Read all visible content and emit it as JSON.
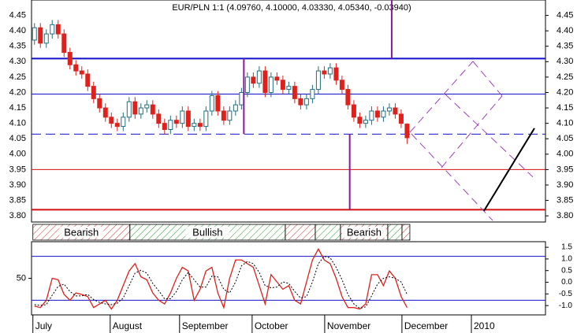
{
  "chart_data": [
    {
      "type": "candlestick",
      "title": "EUR/PLN 1:1 (4.09760, 4.10000, 4.03330, 4.05340, -0.03940)",
      "xlim": [
        -0.5,
        86.4
      ],
      "ylim": [
        3.78,
        4.5
      ],
      "yticks": [
        4.45,
        {
          "value": 4.4,
          "label": "4.40"
        },
        4.35,
        {
          "value": 4.3,
          "label": "4.30"
        },
        4.25,
        {
          "value": 4.2,
          "label": "4.20"
        },
        4.15,
        {
          "value": 4.1,
          "label": "4.10"
        },
        4.05,
        {
          "value": 4.0,
          "label": "4.00"
        },
        3.95,
        {
          "value": 3.9,
          "label": "3.90"
        },
        3.85,
        {
          "value": 3.8,
          "label": "3.80"
        }
      ],
      "up_color": "#1f6f80",
      "down_color": "#e0201b",
      "open": [
        4.37,
        4.41,
        4.36,
        4.39,
        4.42,
        4.39,
        4.33,
        4.29,
        4.27,
        4.26,
        4.22,
        4.18,
        4.15,
        4.12,
        4.1,
        4.09,
        4.12,
        4.17,
        4.13,
        4.15,
        4.16,
        4.13,
        4.1,
        4.08,
        4.11,
        4.1,
        4.14,
        4.09,
        4.1,
        4.09,
        4.14,
        4.19,
        4.14,
        4.11,
        4.14,
        4.16,
        4.2,
        4.25,
        4.23,
        4.27,
        4.2,
        4.25,
        4.24,
        4.21,
        4.22,
        4.18,
        4.16,
        4.18,
        4.21,
        4.27,
        4.26,
        4.28,
        4.24,
        4.21,
        4.16,
        4.12,
        4.1,
        4.11,
        4.14,
        4.12,
        4.14,
        4.15,
        4.13,
        4.0976
      ],
      "high": [
        4.425,
        4.425,
        4.405,
        4.435,
        4.435,
        4.405,
        4.345,
        4.305,
        4.285,
        4.275,
        4.235,
        4.195,
        4.165,
        4.135,
        4.115,
        4.135,
        4.185,
        4.185,
        4.165,
        4.175,
        4.175,
        4.145,
        4.115,
        4.125,
        4.125,
        4.155,
        4.155,
        4.115,
        4.115,
        4.155,
        4.205,
        4.205,
        4.155,
        4.155,
        4.175,
        4.215,
        4.265,
        4.265,
        4.285,
        4.285,
        4.265,
        4.265,
        4.255,
        4.235,
        4.235,
        4.195,
        4.195,
        4.225,
        4.285,
        4.285,
        4.295,
        4.295,
        4.255,
        4.225,
        4.175,
        4.135,
        4.125,
        4.155,
        4.155,
        4.155,
        4.165,
        4.165,
        4.145,
        4.1
      ],
      "low": [
        4.355,
        4.345,
        4.345,
        4.375,
        4.375,
        4.315,
        4.275,
        4.255,
        4.245,
        4.205,
        4.165,
        4.135,
        4.105,
        4.085,
        4.075,
        4.075,
        4.105,
        4.115,
        4.115,
        4.135,
        4.115,
        4.085,
        4.065,
        4.065,
        4.085,
        4.085,
        4.075,
        4.075,
        4.075,
        4.075,
        4.125,
        4.125,
        4.095,
        4.095,
        4.125,
        4.145,
        4.185,
        4.215,
        4.215,
        4.185,
        4.185,
        4.225,
        4.195,
        4.195,
        4.165,
        4.145,
        4.145,
        4.165,
        4.195,
        4.245,
        4.245,
        4.225,
        4.195,
        4.145,
        4.105,
        4.085,
        4.085,
        4.095,
        4.105,
        4.105,
        4.125,
        4.115,
        4.085,
        4.0333
      ],
      "close": [
        4.41,
        4.36,
        4.39,
        4.42,
        4.39,
        4.33,
        4.29,
        4.27,
        4.26,
        4.22,
        4.18,
        4.15,
        4.12,
        4.1,
        4.09,
        4.12,
        4.17,
        4.13,
        4.15,
        4.16,
        4.13,
        4.1,
        4.08,
        4.11,
        4.1,
        4.14,
        4.09,
        4.1,
        4.09,
        4.14,
        4.19,
        4.14,
        4.11,
        4.14,
        4.16,
        4.2,
        4.25,
        4.23,
        4.27,
        4.2,
        4.25,
        4.24,
        4.21,
        4.22,
        4.18,
        4.16,
        4.18,
        4.21,
        4.27,
        4.26,
        4.28,
        4.24,
        4.21,
        4.16,
        4.12,
        4.1,
        4.11,
        4.14,
        4.12,
        4.14,
        4.15,
        4.13,
        4.1,
        4.0534
      ],
      "levels": [
        {
          "value": 4.31,
          "color": "#1010c8",
          "width": 2
        },
        {
          "value": 4.195,
          "color": "#1010c8",
          "width": 1
        },
        {
          "value": 4.065,
          "color": "#1010c8",
          "width": 1,
          "dash": true
        },
        {
          "value": 3.95,
          "color": "#d01010",
          "width": 1
        },
        {
          "value": 3.82,
          "color": "#d01010",
          "width": 2
        }
      ],
      "drawings": [
        {
          "color": "#8a1a9a",
          "width": 2,
          "x": [
            60.4,
            60.4
          ],
          "y": [
            4.31,
            4.5
          ]
        },
        {
          "color": "#8a1a9a",
          "width": 2,
          "x": [
            35.4,
            35.4
          ],
          "y": [
            4.31,
            4.065
          ]
        },
        {
          "color": "#8a1a9a",
          "width": 2,
          "x": [
            53.3,
            53.3
          ],
          "y": [
            4.065,
            3.82
          ]
        },
        {
          "color": "#a040c0",
          "width": 1,
          "dash": true,
          "x": [
            63.47,
            74.13
          ],
          "y": [
            4.071,
            4.301
          ]
        },
        {
          "color": "#a040c0",
          "width": 1,
          "dash": true,
          "x": [
            68.8,
            79.07
          ],
          "y": [
            3.956,
            4.189
          ]
        },
        {
          "color": "#a040c0",
          "width": 1,
          "dash": true,
          "x": [
            74.13,
            79.07
          ],
          "y": [
            4.301,
            4.189
          ]
        },
        {
          "color": "#a040c0",
          "width": 1,
          "dash": true,
          "x": [
            69.47,
            84.27
          ],
          "y": [
            4.194,
            3.926
          ]
        },
        {
          "color": "#a040c0",
          "width": 1,
          "dash": true,
          "x": [
            63.73,
            77.47
          ],
          "y": [
            4.066,
            3.785
          ]
        },
        {
          "color": "#000000",
          "width": 2,
          "x": [
            76.0,
            84.53
          ],
          "y": [
            3.816,
            4.084
          ]
        }
      ]
    },
    {
      "type": "bands",
      "xlim": [
        -0.5,
        86.4
      ],
      "segments": [
        {
          "start": -0.27,
          "end": 16.13,
          "color": "#d03030",
          "label": "Bearish"
        },
        {
          "start": 16.13,
          "end": 42.4,
          "color": "#30a030",
          "label": "Bullish"
        },
        {
          "start": 42.4,
          "end": 47.47,
          "color": "#d03030"
        },
        {
          "start": 47.47,
          "end": 51.73,
          "color": "#30a030"
        },
        {
          "start": 51.73,
          "end": 59.73,
          "color": "#d03030",
          "label": "Bearish"
        },
        {
          "start": 59.73,
          "end": 62.13,
          "color": "#30a030"
        },
        {
          "start": 62.13,
          "end": 63.47,
          "color": "#d03030"
        }
      ]
    },
    {
      "type": "line",
      "xlim": [
        -0.5,
        86.4
      ],
      "ylim": [
        0,
        100
      ],
      "yticks": [
        50
      ],
      "y2lim": [
        -1.4,
        1.74
      ],
      "y2ticks": [
        1.5,
        {
          "value": 1,
          "label": "1.0"
        },
        0.5,
        {
          "value": 0,
          "label": "0.0"
        },
        -0.5,
        {
          "value": -1,
          "label": "-1.0"
        }
      ],
      "xticks": [
        {
          "value": -0.27,
          "label": "July"
        },
        {
          "value": 12.8,
          "label": "August"
        },
        {
          "value": 24.53,
          "label": "September"
        },
        {
          "value": 36.8,
          "label": "October"
        },
        {
          "value": 49.07,
          "label": "November"
        },
        {
          "value": 62.13,
          "label": "December"
        },
        {
          "value": 73.87,
          "label": "2010"
        }
      ],
      "levels": [
        {
          "value": 80,
          "color": "#1010c8"
        },
        {
          "value": 20,
          "color": "#1010c8"
        }
      ],
      "series": [
        {
          "color": "#e0201b",
          "values": [
            12,
            10,
            20,
            50,
            48,
            28,
            20,
            30,
            28,
            25,
            10,
            15,
            20,
            8,
            20,
            40,
            60,
            70,
            52,
            48,
            30,
            20,
            15,
            30,
            50,
            65,
            60,
            20,
            35,
            60,
            65,
            30,
            10,
            50,
            75,
            75,
            70,
            65,
            40,
            15,
            55,
            45,
            35,
            40,
            20,
            15,
            45,
            75,
            90,
            75,
            70,
            50,
            25,
            10,
            10,
            8,
            15,
            55,
            55,
            40,
            60,
            50,
            25,
            10
          ]
        },
        {
          "color": "#000000",
          "dash": true,
          "values": [
            14,
            13,
            14,
            27,
            39,
            42,
            32,
            26,
            26,
            28,
            21,
            17,
            15,
            14,
            16,
            23,
            40,
            57,
            61,
            57,
            43,
            33,
            22,
            22,
            32,
            48,
            58,
            48,
            38,
            38,
            53,
            52,
            35,
            30,
            45,
            67,
            73,
            70,
            58,
            40,
            37,
            38,
            45,
            43,
            32,
            23,
            25,
            45,
            70,
            80,
            78,
            65,
            48,
            28,
            15,
            9,
            11,
            26,
            42,
            50,
            52,
            50,
            45,
            28
          ]
        }
      ]
    }
  ]
}
